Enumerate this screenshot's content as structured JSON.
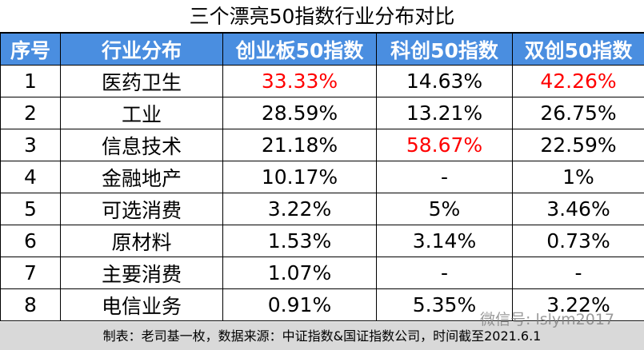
{
  "title": "三个漂亮50指数行业分布对比",
  "table": {
    "header": [
      "序号",
      "行业分布",
      "创业板50指数",
      "科创50指数",
      "双创50指数"
    ],
    "rows": [
      [
        "1",
        "医药卫生",
        "33.33%",
        "14.63%",
        "42.26%"
      ],
      [
        "2",
        "工业",
        "28.59%",
        "13.21%",
        "26.75%"
      ],
      [
        "3",
        "信息技术",
        "21.18%",
        "58.67%",
        "22.59%"
      ],
      [
        "4",
        "金融地产",
        "10.17%",
        "-",
        "1%"
      ],
      [
        "5",
        "可选消费",
        "3.22%",
        "5%",
        "3.46%"
      ],
      [
        "6",
        "原材料",
        "1.53%",
        "3.14%",
        "0.73%"
      ],
      [
        "7",
        "主要消费",
        "1.07%",
        "-",
        "-"
      ],
      [
        "8",
        "电信业务",
        "0.91%",
        "5.35%",
        "3.22%"
      ]
    ],
    "header_color": "#4a8ee0",
    "highlight_color": "#ff0000",
    "highlight_cells": [
      [
        0,
        2
      ],
      [
        0,
        4
      ],
      [
        2,
        3
      ]
    ]
  },
  "footer": "制表：老司基一枚，数据来源：中证指数&国证指数公司，时间截至2021.6.1",
  "watermark": "微信号: lslym2017"
}
